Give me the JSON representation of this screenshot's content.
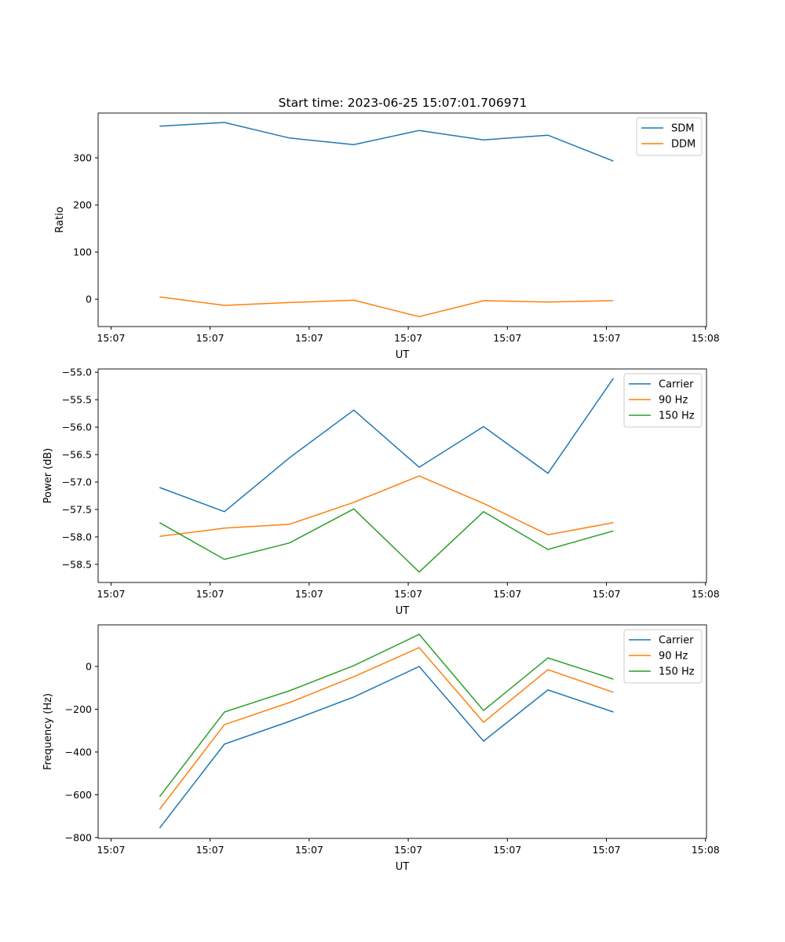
{
  "title": "Start time: 2023-06-25 15:07:01.706971",
  "colors": {
    "blue": "#1f77b4",
    "orange": "#ff7f0e",
    "green": "#2ca02c"
  },
  "chart_data": [
    {
      "type": "line",
      "xlabel": "UT",
      "ylabel": "Ratio",
      "x_unit": "seconds after 15:07:00",
      "x": [
        4.9,
        11.45,
        18.0,
        24.5,
        31.1,
        37.6,
        44.1,
        50.7
      ],
      "xlim": [
        -1.3,
        60.1
      ],
      "xticks": [
        0,
        10,
        20,
        30,
        40,
        50,
        60
      ],
      "xtick_labels": [
        "15:07",
        "15:07",
        "15:07",
        "15:07",
        "15:07",
        "15:07",
        "15:08"
      ],
      "ylim": [
        -58,
        395
      ],
      "yticks": [
        0,
        100,
        200,
        300
      ],
      "ytick_labels": [
        "0",
        "100",
        "200",
        "300"
      ],
      "legend": "top-right",
      "series": [
        {
          "name": "SDM",
          "color": "#1f77b4",
          "values": [
            367,
            375,
            342,
            328,
            358,
            338,
            348,
            293
          ]
        },
        {
          "name": "DDM",
          "color": "#ff7f0e",
          "values": [
            5,
            -13,
            -7,
            -2,
            -37,
            -3,
            -6,
            -3
          ]
        }
      ]
    },
    {
      "type": "line",
      "xlabel": "UT",
      "ylabel": "Power (dB)",
      "x": [
        4.9,
        11.45,
        18.0,
        24.5,
        31.1,
        37.6,
        44.1,
        50.7
      ],
      "xlim": [
        -1.3,
        60.1
      ],
      "xticks": [
        0,
        10,
        20,
        30,
        40,
        50,
        60
      ],
      "xtick_labels": [
        "15:07",
        "15:07",
        "15:07",
        "15:07",
        "15:07",
        "15:07",
        "15:08"
      ],
      "ylim": [
        -58.83,
        -54.94
      ],
      "yticks": [
        -58.5,
        -58.0,
        -57.5,
        -57.0,
        -56.5,
        -56.0,
        -55.5,
        -55.0
      ],
      "ytick_labels": [
        "−58.5",
        "−58.0",
        "−57.5",
        "−57.0",
        "−56.5",
        "−56.0",
        "−55.5",
        "−55.0"
      ],
      "legend": "top-right",
      "series": [
        {
          "name": "Carrier",
          "color": "#1f77b4",
          "values": [
            -57.1,
            -57.54,
            -56.56,
            -55.69,
            -56.73,
            -55.99,
            -56.84,
            -55.11
          ]
        },
        {
          "name": "90 Hz",
          "color": "#ff7f0e",
          "values": [
            -57.99,
            -57.84,
            -57.77,
            -57.37,
            -56.89,
            -57.39,
            -57.96,
            -57.74
          ]
        },
        {
          "name": "150 Hz",
          "color": "#2ca02c",
          "values": [
            -57.74,
            -58.41,
            -58.11,
            -57.49,
            -58.64,
            -57.54,
            -58.23,
            -57.89
          ]
        }
      ]
    },
    {
      "type": "line",
      "xlabel": "UT",
      "ylabel": "Frequency (Hz)",
      "x": [
        4.9,
        11.45,
        18.0,
        24.5,
        31.1,
        37.6,
        44.1,
        50.7
      ],
      "xlim": [
        -1.3,
        60.1
      ],
      "xticks": [
        0,
        10,
        20,
        30,
        40,
        50,
        60
      ],
      "xtick_labels": [
        "15:07",
        "15:07",
        "15:07",
        "15:07",
        "15:07",
        "15:07",
        "15:08"
      ],
      "ylim": [
        -804,
        194.5
      ],
      "yticks": [
        -800,
        -600,
        -400,
        -200,
        0
      ],
      "ytick_labels": [
        "−800",
        "−600",
        "−400",
        "−200",
        "0"
      ],
      "legend": "top-right",
      "series": [
        {
          "name": "Carrier",
          "color": "#1f77b4",
          "values": [
            -756,
            -363,
            -257,
            -143,
            0,
            -349,
            -110,
            -213
          ]
        },
        {
          "name": "90 Hz",
          "color": "#ff7f0e",
          "values": [
            -668,
            -272,
            -169,
            -48,
            88,
            -261,
            -15,
            -121
          ]
        },
        {
          "name": "150 Hz",
          "color": "#2ca02c",
          "values": [
            -609,
            -213,
            -114,
            4,
            150,
            -206,
            40,
            -59
          ]
        }
      ]
    }
  ]
}
